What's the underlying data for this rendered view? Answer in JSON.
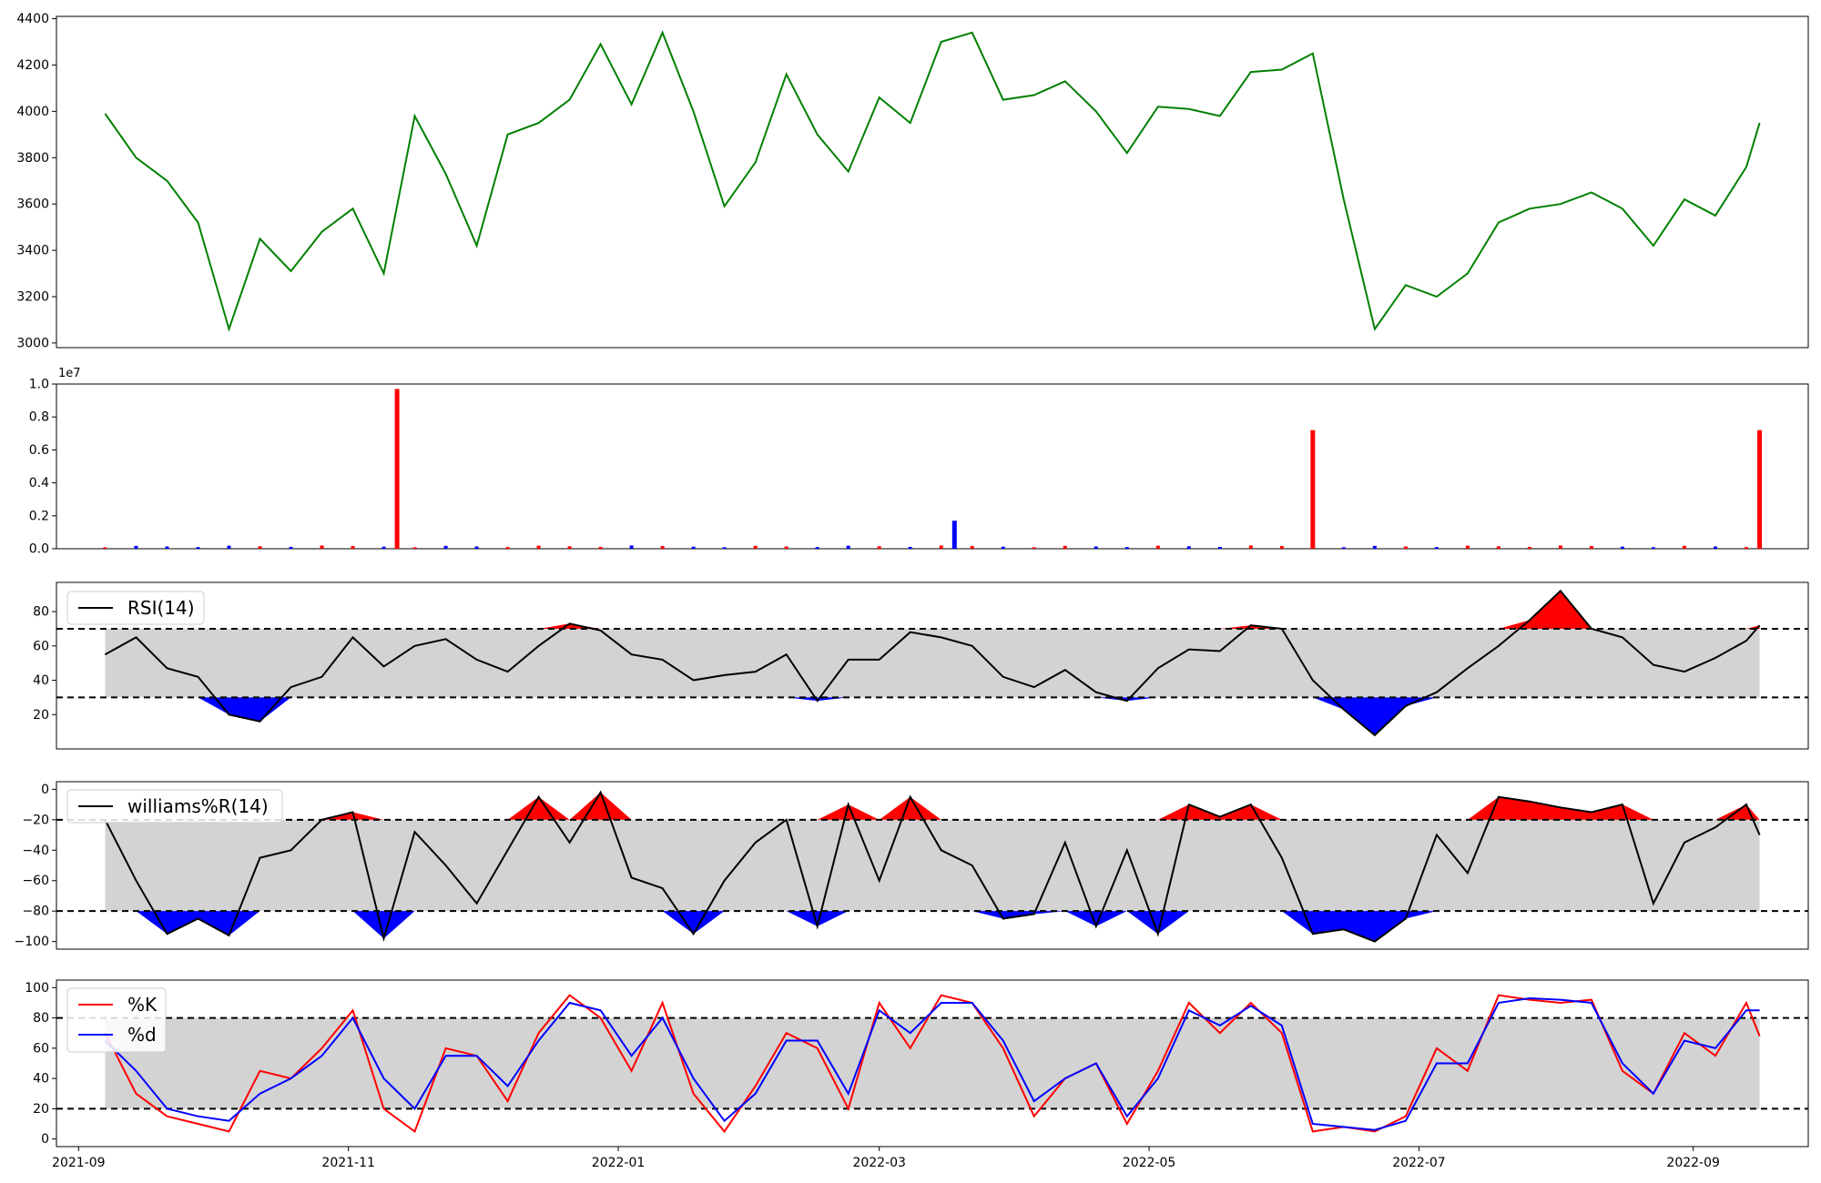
{
  "chart_data": [
    {
      "type": "line",
      "name": "price",
      "ylim": [
        2980,
        4410
      ],
      "yticks": [
        "3000",
        "3200",
        "3400",
        "3600",
        "3800",
        "4000",
        "4200",
        "4400"
      ],
      "color": "#008000",
      "x": [
        "2021-09-07",
        "2021-09-14",
        "2021-09-21",
        "2021-09-28",
        "2021-10-05",
        "2021-10-12",
        "2021-10-19",
        "2021-10-26",
        "2021-11-02",
        "2021-11-09",
        "2021-11-16",
        "2021-11-23",
        "2021-11-30",
        "2021-12-07",
        "2021-12-14",
        "2021-12-21",
        "2021-12-28",
        "2022-01-04",
        "2022-01-11",
        "2022-01-18",
        "2022-01-25",
        "2022-02-01",
        "2022-02-08",
        "2022-02-15",
        "2022-02-22",
        "2022-03-01",
        "2022-03-08",
        "2022-03-15",
        "2022-03-22",
        "2022-03-29",
        "2022-04-05",
        "2022-04-12",
        "2022-04-19",
        "2022-04-26",
        "2022-05-03",
        "2022-05-10",
        "2022-05-17",
        "2022-05-24",
        "2022-05-31",
        "2022-06-07",
        "2022-06-14",
        "2022-06-21",
        "2022-06-28",
        "2022-07-05",
        "2022-07-12",
        "2022-07-19",
        "2022-07-26",
        "2022-08-02",
        "2022-08-09",
        "2022-08-16",
        "2022-08-23",
        "2022-08-30",
        "2022-09-06",
        "2022-09-13",
        "2022-09-16"
      ],
      "values": [
        3990,
        3800,
        3700,
        3520,
        3060,
        3450,
        3310,
        3480,
        3580,
        3300,
        3980,
        3730,
        3420,
        3900,
        3950,
        4050,
        4290,
        4030,
        4340,
        4000,
        3590,
        3780,
        4160,
        3900,
        3740,
        4060,
        3950,
        4300,
        4340,
        4050,
        4070,
        4130,
        4000,
        3820,
        4020,
        4010,
        3980,
        4170,
        4180,
        4250,
        3620,
        3060,
        3250,
        3200,
        3300,
        3520,
        3580,
        3600,
        3650,
        3580,
        3420,
        3620,
        3550,
        3760,
        3950
      ]
    },
    {
      "type": "bar",
      "name": "volume",
      "ylim": [
        0,
        10000000
      ],
      "offset_label": "1e7",
      "yticks": [
        "0.0",
        "0.2",
        "0.4",
        "0.6",
        "0.8",
        "1.0"
      ],
      "colors": {
        "up": "#ff0000",
        "down": "#0000ff"
      },
      "spikes": [
        {
          "date": "2021-11-12",
          "value": 9700000,
          "color": "#ff0000"
        },
        {
          "date": "2022-03-18",
          "value": 1700000,
          "color": "#0000ff"
        },
        {
          "date": "2022-06-07",
          "value": 7200000,
          "color": "#ff0000"
        },
        {
          "date": "2022-09-16",
          "value": 7200000,
          "color": "#ff0000"
        }
      ],
      "baseline_value": 150000
    },
    {
      "type": "area",
      "name": "RSI(14)",
      "legend": [
        "RSI(14)"
      ],
      "ylim": [
        0,
        97
      ],
      "yticks": [
        "20",
        "40",
        "60",
        "80"
      ],
      "bands": [
        30,
        70
      ],
      "fill_colors": {
        "band": "#d3d3d3",
        "over": "#ff0000",
        "under": "#0000ff"
      },
      "x": [
        "2021-09-07",
        "2021-09-14",
        "2021-09-21",
        "2021-09-28",
        "2021-10-05",
        "2021-10-12",
        "2021-10-19",
        "2021-10-26",
        "2021-11-02",
        "2021-11-09",
        "2021-11-16",
        "2021-11-23",
        "2021-11-30",
        "2021-12-07",
        "2021-12-14",
        "2021-12-21",
        "2021-12-28",
        "2022-01-04",
        "2022-01-11",
        "2022-01-18",
        "2022-01-25",
        "2022-02-01",
        "2022-02-08",
        "2022-02-15",
        "2022-02-22",
        "2022-03-01",
        "2022-03-08",
        "2022-03-15",
        "2022-03-22",
        "2022-03-29",
        "2022-04-05",
        "2022-04-12",
        "2022-04-19",
        "2022-04-26",
        "2022-05-03",
        "2022-05-10",
        "2022-05-17",
        "2022-05-24",
        "2022-05-31",
        "2022-06-07",
        "2022-06-14",
        "2022-06-21",
        "2022-06-28",
        "2022-07-05",
        "2022-07-12",
        "2022-07-19",
        "2022-07-26",
        "2022-08-02",
        "2022-08-09",
        "2022-08-16",
        "2022-08-23",
        "2022-08-30",
        "2022-09-06",
        "2022-09-13",
        "2022-09-16"
      ],
      "values": [
        55,
        65,
        47,
        42,
        20,
        16,
        36,
        42,
        65,
        48,
        60,
        64,
        52,
        45,
        60,
        73,
        69,
        55,
        52,
        40,
        43,
        45,
        55,
        28,
        52,
        52,
        68,
        65,
        60,
        42,
        36,
        46,
        33,
        28,
        47,
        58,
        57,
        72,
        70,
        40,
        23,
        8,
        25,
        33,
        47,
        60,
        75,
        92,
        70,
        65,
        49,
        45,
        53,
        63,
        72
      ]
    },
    {
      "type": "area",
      "name": "williams%R(14)",
      "legend": [
        "williams%R(14)"
      ],
      "ylim": [
        -105,
        5
      ],
      "yticks": [
        "0",
        "−20",
        "−40",
        "−60",
        "−80",
        "−100"
      ],
      "bands": [
        -80,
        -20
      ],
      "fill_colors": {
        "band": "#d3d3d3",
        "over": "#ff0000",
        "under": "#0000ff"
      },
      "x": [
        "2021-09-07",
        "2021-09-14",
        "2021-09-21",
        "2021-09-28",
        "2021-10-05",
        "2021-10-12",
        "2021-10-19",
        "2021-10-26",
        "2021-11-02",
        "2021-11-09",
        "2021-11-16",
        "2021-11-23",
        "2021-11-30",
        "2021-12-07",
        "2021-12-14",
        "2021-12-21",
        "2021-12-28",
        "2022-01-04",
        "2022-01-11",
        "2022-01-18",
        "2022-01-25",
        "2022-02-01",
        "2022-02-08",
        "2022-02-15",
        "2022-02-22",
        "2022-03-01",
        "2022-03-08",
        "2022-03-15",
        "2022-03-22",
        "2022-03-29",
        "2022-04-05",
        "2022-04-12",
        "2022-04-19",
        "2022-04-26",
        "2022-05-03",
        "2022-05-10",
        "2022-05-17",
        "2022-05-24",
        "2022-05-31",
        "2022-06-07",
        "2022-06-14",
        "2022-06-21",
        "2022-06-28",
        "2022-07-05",
        "2022-07-12",
        "2022-07-19",
        "2022-07-26",
        "2022-08-02",
        "2022-08-09",
        "2022-08-16",
        "2022-08-23",
        "2022-08-30",
        "2022-09-06",
        "2022-09-13",
        "2022-09-16"
      ],
      "values": [
        -20,
        -60,
        -95,
        -85,
        -96,
        -45,
        -40,
        -20,
        -15,
        -98,
        -28,
        -50,
        -75,
        -40,
        -5,
        -35,
        -2,
        -58,
        -65,
        -95,
        -60,
        -35,
        -20,
        -90,
        -10,
        -60,
        -5,
        -40,
        -50,
        -85,
        -82,
        -35,
        -90,
        -40,
        -95,
        -10,
        -18,
        -10,
        -45,
        -95,
        -92,
        -100,
        -85,
        -30,
        -55,
        -5,
        -8,
        -12,
        -15,
        -10,
        -75,
        -35,
        -25,
        -10,
        -30
      ]
    },
    {
      "type": "line",
      "name": "stochastic",
      "ylim": [
        -5,
        105
      ],
      "yticks": [
        "0",
        "20",
        "40",
        "60",
        "80",
        "100"
      ],
      "bands": [
        20,
        80
      ],
      "band_fill": "#d3d3d3",
      "xticks": [
        "2021-09",
        "2021-11",
        "2022-01",
        "2022-03",
        "2022-05",
        "2022-07",
        "2022-09"
      ],
      "x": [
        "2021-09-07",
        "2021-09-14",
        "2021-09-21",
        "2021-09-28",
        "2021-10-05",
        "2021-10-12",
        "2021-10-19",
        "2021-10-26",
        "2021-11-02",
        "2021-11-09",
        "2021-11-16",
        "2021-11-23",
        "2021-11-30",
        "2021-12-07",
        "2021-12-14",
        "2021-12-21",
        "2021-12-28",
        "2022-01-04",
        "2022-01-11",
        "2022-01-18",
        "2022-01-25",
        "2022-02-01",
        "2022-02-08",
        "2022-02-15",
        "2022-02-22",
        "2022-03-01",
        "2022-03-08",
        "2022-03-15",
        "2022-03-22",
        "2022-03-29",
        "2022-04-05",
        "2022-04-12",
        "2022-04-19",
        "2022-04-26",
        "2022-05-03",
        "2022-05-10",
        "2022-05-17",
        "2022-05-24",
        "2022-05-31",
        "2022-06-07",
        "2022-06-14",
        "2022-06-21",
        "2022-06-28",
        "2022-07-05",
        "2022-07-12",
        "2022-07-19",
        "2022-07-26",
        "2022-08-02",
        "2022-08-09",
        "2022-08-16",
        "2022-08-23",
        "2022-08-30",
        "2022-09-06",
        "2022-09-13",
        "2022-09-16"
      ],
      "series": [
        {
          "name": "%K",
          "color": "#ff0000",
          "values": [
            70,
            30,
            15,
            10,
            5,
            45,
            40,
            60,
            85,
            20,
            5,
            60,
            55,
            25,
            70,
            95,
            80,
            45,
            90,
            30,
            5,
            35,
            70,
            60,
            20,
            90,
            60,
            95,
            90,
            60,
            15,
            40,
            50,
            10,
            45,
            90,
            70,
            90,
            70,
            5,
            8,
            5,
            15,
            60,
            45,
            95,
            92,
            90,
            92,
            45,
            30,
            70,
            55,
            90,
            68
          ]
        },
        {
          "name": "%d",
          "color": "#0000ff",
          "values": [
            65,
            45,
            20,
            15,
            12,
            30,
            40,
            55,
            80,
            40,
            20,
            55,
            55,
            35,
            65,
            90,
            85,
            55,
            80,
            40,
            12,
            30,
            65,
            65,
            30,
            85,
            70,
            90,
            90,
            65,
            25,
            40,
            50,
            15,
            40,
            85,
            75,
            88,
            75,
            10,
            8,
            6,
            12,
            50,
            50,
            90,
            93,
            92,
            90,
            50,
            30,
            65,
            60,
            85,
            85
          ]
        }
      ]
    }
  ]
}
